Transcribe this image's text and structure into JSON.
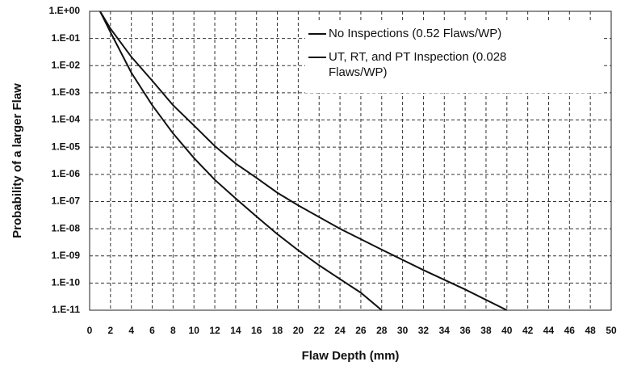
{
  "chart_data": {
    "type": "line",
    "x_label": "Flaw Depth (mm)",
    "y_label": "Probability of a larger Flaw",
    "log_y": true,
    "grid": true,
    "legend": "upper right",
    "xlim": [
      0,
      50
    ],
    "xticks": [
      0,
      2,
      4,
      6,
      8,
      10,
      12,
      14,
      16,
      18,
      20,
      22,
      24,
      26,
      28,
      30,
      32,
      34,
      36,
      38,
      40,
      42,
      44,
      46,
      48,
      50
    ],
    "ylim": [
      1e-11,
      1
    ],
    "yticks": [
      {
        "value": 1,
        "label": "1.E+00"
      },
      {
        "value": 0.1,
        "label": "1.E-01"
      },
      {
        "value": 0.01,
        "label": "1.E-02"
      },
      {
        "value": 0.001,
        "label": "1.E-03"
      },
      {
        "value": 0.0001,
        "label": "1.E-04"
      },
      {
        "value": 1e-05,
        "label": "1.E-05"
      },
      {
        "value": 1e-06,
        "label": "1.E-06"
      },
      {
        "value": 1e-07,
        "label": "1.E-07"
      },
      {
        "value": 1e-08,
        "label": "1.E-08"
      },
      {
        "value": 1e-09,
        "label": "1.E-09"
      },
      {
        "value": 1e-10,
        "label": "1.E-10"
      },
      {
        "value": 1e-11,
        "label": "1.E-11"
      }
    ],
    "series": [
      {
        "name": "No Inspections (0.52 Flaws/WP)",
        "color": "#111111",
        "x": [
          1,
          2,
          4,
          6,
          8,
          10,
          12,
          14,
          16,
          18,
          20,
          24,
          28,
          32,
          36,
          40
        ],
        "values": [
          1,
          0.23,
          0.021,
          0.0028,
          0.00035,
          6.3e-05,
          1.1e-05,
          2.5e-06,
          7.4e-07,
          2.1e-07,
          7.2e-08,
          1e-08,
          1.7e-09,
          3e-10,
          5.8e-11,
          1e-11
        ]
      },
      {
        "name": "UT, RT, and PT Inspection (0.028 Flaws/WP)",
        "color": "#111111",
        "x": [
          1,
          2,
          4,
          6,
          8,
          10,
          12,
          14,
          16,
          18,
          20,
          22,
          24,
          26,
          28
        ],
        "values": [
          1,
          0.17,
          0.0055,
          0.00035,
          3.2e-05,
          4e-06,
          6.3e-07,
          1.3e-07,
          2.8e-08,
          6.3e-09,
          1.6e-09,
          4.5e-10,
          1.4e-10,
          4.4e-11,
          1e-11
        ]
      }
    ]
  }
}
